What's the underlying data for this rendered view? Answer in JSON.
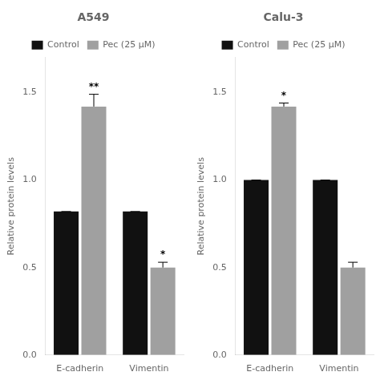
{
  "chart_data": [
    {
      "type": "bar",
      "title": "A549",
      "categories": [
        "E-cadherin",
        "Vimentin"
      ],
      "series": [
        {
          "name": "Control",
          "color": "#111111",
          "values": [
            0.82,
            0.82
          ],
          "errors": [
            0.0,
            0.0
          ]
        },
        {
          "name": "Pec (25 μM)",
          "color": "#a0a0a0",
          "values": [
            1.42,
            0.5
          ],
          "errors": [
            0.07,
            0.03
          ],
          "annotations": [
            "**",
            "*"
          ]
        }
      ],
      "ylabel": "Relative protein levels",
      "ylim": [
        0,
        1.7
      ],
      "yticks": [
        {
          "value": 0.0,
          "label": "0.0"
        },
        {
          "value": 0.5,
          "label": "0.5"
        },
        {
          "value": 1.0,
          "label": "1.0"
        },
        {
          "value": 1.5,
          "label": "1.5"
        }
      ],
      "grid": false,
      "legend": "top"
    },
    {
      "type": "bar",
      "title": "Calu-3",
      "categories": [
        "E-cadherin",
        "Vimentin"
      ],
      "series": [
        {
          "name": "Control",
          "color": "#111111",
          "values": [
            1.0,
            1.0
          ],
          "errors": [
            0.0,
            0.0
          ]
        },
        {
          "name": "Pec (25 μM)",
          "color": "#a0a0a0",
          "values": [
            1.42,
            0.5
          ],
          "errors": [
            0.02,
            0.03
          ],
          "annotations": [
            "*",
            null
          ]
        }
      ],
      "ylabel": "Relative protein levels",
      "ylim": [
        0,
        1.7
      ],
      "yticks": [
        {
          "value": 0.0,
          "label": "0.0"
        },
        {
          "value": 0.5,
          "label": "0.5"
        },
        {
          "value": 1.0,
          "label": "1.0"
        },
        {
          "value": 1.5,
          "label": "1.5"
        }
      ],
      "grid": false,
      "legend": "top"
    }
  ]
}
